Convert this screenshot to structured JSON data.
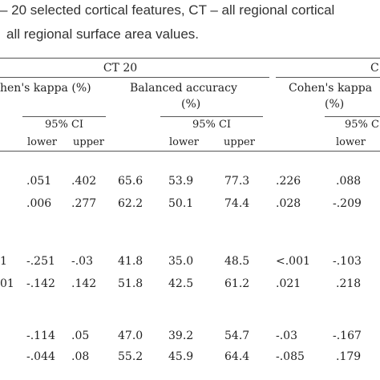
{
  "caption": {
    "line1": "– 20 selected cortical features, CT – all regional cortical",
    "line2": "all regional surface area values."
  },
  "table": {
    "group_ct20": "CT 20",
    "group_ct_partial": "C",
    "kappa_left_header": "hen's kappa (%)",
    "balanced_accuracy_header_1": "Balanced accuracy",
    "balanced_accuracy_header_2": "(%)",
    "kappa_right_header_1": "Cohen's kappa",
    "kappa_right_header_2": "(%)",
    "ci_label": "95% CI",
    "ci_label_partial": "95% C",
    "lower": "lower",
    "upper": "upper",
    "rows": [
      {
        "stub": "",
        "k_lower": ".051",
        "k_upper": ".402",
        "ba": "65.6",
        "ba_lower": "53.9",
        "ba_upper": "77.3",
        "k2": ".226",
        "k2_lower": ".088"
      },
      {
        "stub": "",
        "k_lower": ".006",
        "k_upper": ".277",
        "ba": "62.2",
        "ba_lower": "50.1",
        "ba_upper": "74.4",
        "k2": ".028",
        "k2_lower": "-.209"
      },
      {
        "stub": "1",
        "k_lower": "-.251",
        "k_upper": "-.03",
        "ba": "41.8",
        "ba_lower": "35.0",
        "ba_upper": "48.5",
        "k2": "<.001",
        "k2_lower": "-.103"
      },
      {
        "stub": "01",
        "k_lower": "-.142",
        "k_upper": ".142",
        "ba": "51.8",
        "ba_lower": "42.5",
        "ba_upper": "61.2",
        "k2": ".021",
        "k2_lower": ".218"
      },
      {
        "stub": "",
        "k_lower": "-.114",
        "k_upper": ".05",
        "ba": "47.0",
        "ba_lower": "39.2",
        "ba_upper": "54.7",
        "k2": "-.03",
        "k2_lower": "-.167"
      },
      {
        "stub": "",
        "k_lower": "-.044",
        "k_upper": ".08",
        "ba": "55.2",
        "ba_lower": "45.9",
        "ba_upper": "64.4",
        "k2": "-.085",
        "k2_lower": ".179"
      }
    ]
  }
}
